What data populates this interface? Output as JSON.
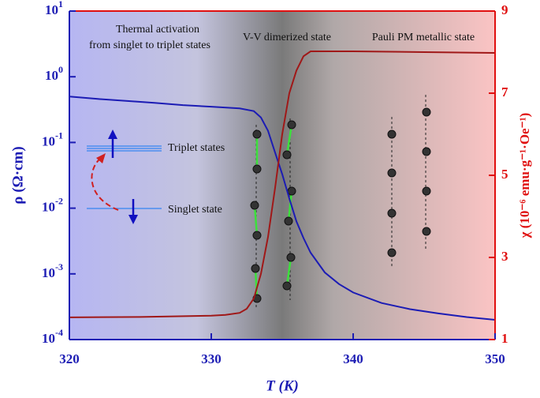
{
  "chart_data": {
    "type": "line",
    "xlabel": "T (K)",
    "ylabel": "ρ (Ω·cm)",
    "y2label": "χ (10⁻⁶ emu·g⁻¹·Oe⁻¹)",
    "annotations": [
      "Thermal activation",
      "from singlet to triplet states",
      "V-V dimerized state",
      "Pauli PM metallic state",
      "Triplet states",
      "Singlet state"
    ],
    "xlim": [
      320,
      350
    ],
    "xticks": [
      320,
      330,
      340,
      350
    ],
    "ylim": [
      0.0001,
      10
    ],
    "ylog": true,
    "yticks": [
      {
        "value": 10,
        "label": "10",
        "exponent": "1"
      },
      {
        "value": 1,
        "label": "10",
        "exponent": "0"
      },
      {
        "value": 0.1,
        "label": "10",
        "exponent": "-1"
      },
      {
        "value": 0.01,
        "label": "10",
        "exponent": "-2"
      },
      {
        "value": 0.001,
        "label": "10",
        "exponent": "-3"
      },
      {
        "value": 0.0001,
        "label": "10",
        "exponent": "-4"
      }
    ],
    "y2lim": [
      1,
      9
    ],
    "y2ticks": [
      1,
      3,
      5,
      7,
      9
    ],
    "series": [
      {
        "color": "#1c1cb4",
        "axis": "y",
        "x": [
          320,
          322,
          324,
          326,
          328,
          330,
          332,
          333,
          333.5,
          334,
          334.5,
          335,
          335.5,
          336,
          336.5,
          337,
          338,
          339,
          340,
          342,
          344,
          346,
          348,
          350
        ],
        "values": [
          0.5,
          0.46,
          0.43,
          0.4,
          0.37,
          0.35,
          0.33,
          0.3,
          0.24,
          0.15,
          0.07,
          0.033,
          0.014,
          0.0063,
          0.0035,
          0.0021,
          0.00105,
          0.0007,
          0.00052,
          0.00036,
          0.00029,
          0.00025,
          0.00022,
          0.0002
        ]
      },
      {
        "color": "#a01818",
        "axis": "y2",
        "x": [
          320,
          325,
          330,
          331,
          332,
          332.5,
          333,
          333.5,
          334,
          334.5,
          335,
          335.5,
          336,
          336.5,
          337,
          340,
          345,
          350
        ],
        "values": [
          1.54,
          1.55,
          1.58,
          1.6,
          1.65,
          1.75,
          2.0,
          2.6,
          3.5,
          4.7,
          6.0,
          7.0,
          7.55,
          7.9,
          8.02,
          8.02,
          8.0,
          7.98
        ]
      }
    ]
  }
}
